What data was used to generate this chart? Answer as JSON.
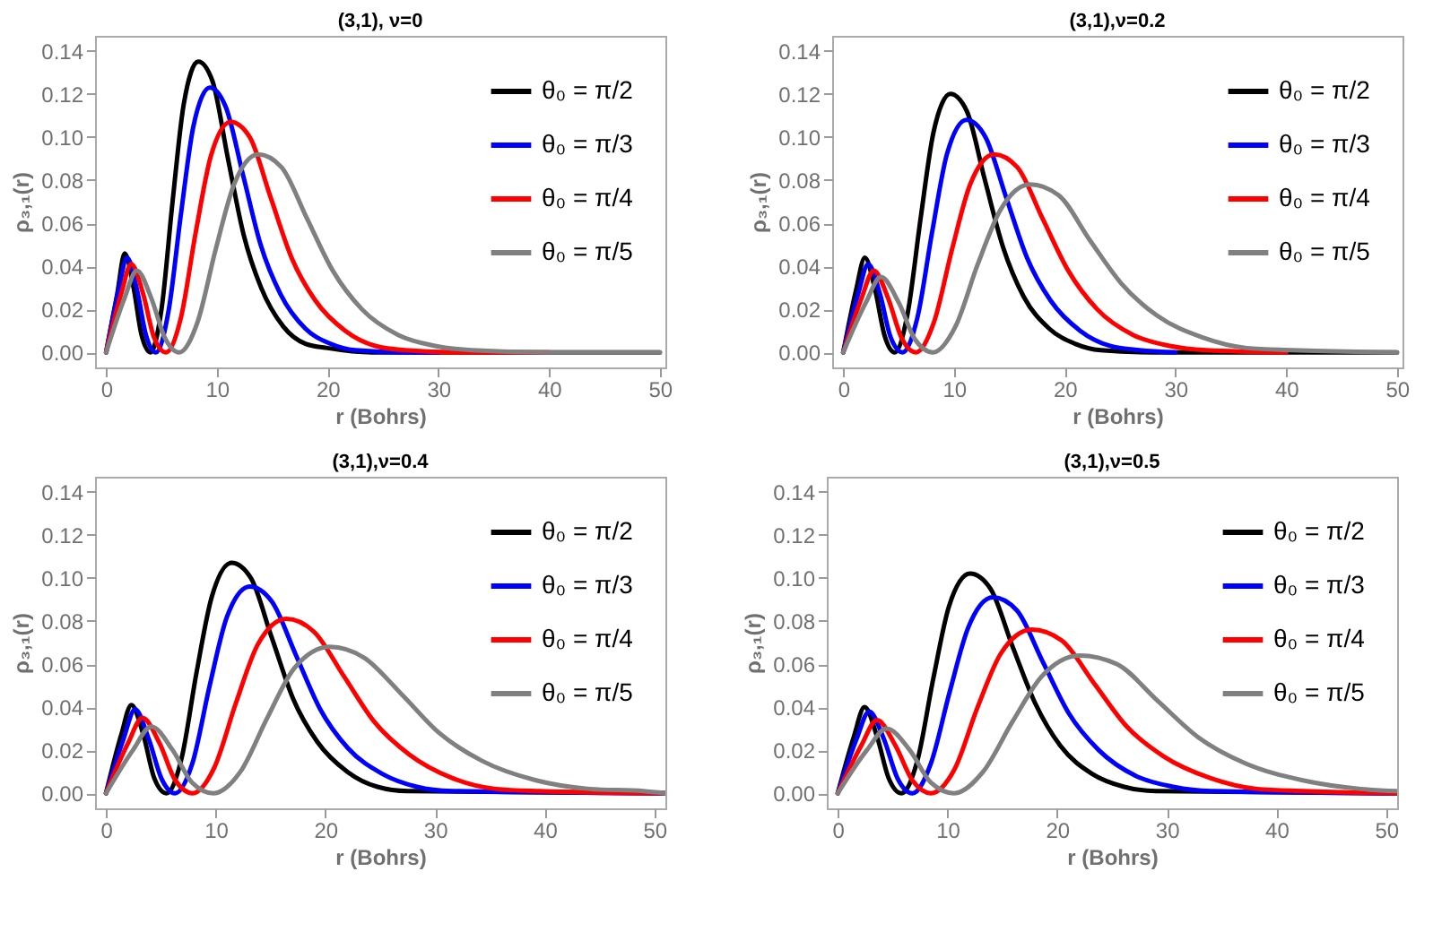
{
  "chart_data": [
    {
      "type": "line",
      "title": "(3,1), ν=0",
      "xlabel": "r (Bohrs)",
      "ylabel": "ρ₃,₁(r)",
      "xlim": [
        -1,
        50.5
      ],
      "ylim": [
        -0.007,
        0.147
      ],
      "xticks": [
        0,
        10,
        20,
        30,
        40,
        50
      ],
      "yticks": [
        {
          "value": 0,
          "label": "0.00"
        },
        {
          "value": 0.02,
          "label": "0.02"
        },
        {
          "value": 0.04,
          "label": "0.04"
        },
        {
          "value": 0.06,
          "label": "0.06"
        },
        {
          "value": 0.08,
          "label": "0.08"
        },
        {
          "value": 0.1,
          "label": "0.10"
        },
        {
          "value": 0.12,
          "label": "0.12"
        },
        {
          "value": 0.14,
          "label": "0.14"
        }
      ],
      "grid": false,
      "legend": "top right",
      "marker": "none",
      "line_style": "solid",
      "series": [
        {
          "name": "θ₀ = π/2",
          "color": "#000000",
          "x": [
            0,
            1,
            1.68,
            2.48,
            3.2,
            4,
            5,
            6,
            7,
            8.32,
            9.6,
            11,
            12.4,
            14,
            16,
            18,
            20,
            24,
            50
          ],
          "values": [
            0,
            0.027,
            0.046,
            0.03,
            0.008,
            0,
            0.02,
            0.07,
            0.115,
            0.135,
            0.126,
            0.09,
            0.055,
            0.03,
            0.012,
            0.004,
            0.002,
            0,
            0
          ]
        },
        {
          "name": "θ₀ = π/3",
          "color": "#0000ff",
          "x": [
            0,
            1.13,
            1.89,
            2.79,
            3.6,
            4.5,
            5.63,
            6.75,
            7.88,
            9.36,
            10.8,
            12.38,
            13.95,
            15.75,
            18,
            20.25,
            22.5,
            27,
            30
          ],
          "values": [
            0,
            0.029,
            0.044,
            0.029,
            0.008,
            0,
            0.019,
            0.064,
            0.105,
            0.123,
            0.114,
            0.082,
            0.05,
            0.027,
            0.011,
            0.004,
            0.001,
            0,
            0
          ]
        },
        {
          "name": "θ₀ = π/4",
          "color": "#ff0000",
          "x": [
            0,
            1.35,
            2.27,
            3.35,
            4.32,
            5.4,
            6.75,
            8.1,
            9.45,
            11.23,
            12.96,
            14.85,
            16.74,
            18.9,
            21.6,
            24.3,
            27,
            32.4,
            40
          ],
          "values": [
            0,
            0.027,
            0.041,
            0.027,
            0.007,
            0,
            0.016,
            0.056,
            0.091,
            0.107,
            0.1,
            0.072,
            0.044,
            0.024,
            0.01,
            0.003,
            0.001,
            0,
            0
          ]
        },
        {
          "name": "θ₀ = π/5",
          "color": "#808080",
          "x": [
            0,
            1.65,
            2.77,
            4.09,
            5.28,
            6.6,
            8.25,
            9.9,
            11.55,
            13.73,
            15.84,
            18.15,
            20.46,
            23.1,
            26.4,
            29.7,
            33,
            39.6,
            50
          ],
          "values": [
            0,
            0.025,
            0.038,
            0.025,
            0.007,
            0,
            0.014,
            0.048,
            0.078,
            0.092,
            0.086,
            0.062,
            0.038,
            0.02,
            0.008,
            0.003,
            0.001,
            0,
            0
          ]
        }
      ]
    },
    {
      "type": "line",
      "title": "(3,1),ν=0.2",
      "xlabel": "r (Bohrs)",
      "ylabel": "ρ₃,₁(r)",
      "xlim": [
        -1,
        50.5
      ],
      "ylim": [
        -0.007,
        0.147
      ],
      "xticks": [
        0,
        10,
        20,
        30,
        40,
        50
      ],
      "yticks": [
        {
          "value": 0,
          "label": "0.00"
        },
        {
          "value": 0.02,
          "label": "0.02"
        },
        {
          "value": 0.04,
          "label": "0.04"
        },
        {
          "value": 0.06,
          "label": "0.06"
        },
        {
          "value": 0.08,
          "label": "0.08"
        },
        {
          "value": 0.1,
          "label": "0.10"
        },
        {
          "value": 0.12,
          "label": "0.12"
        },
        {
          "value": 0.14,
          "label": "0.14"
        }
      ],
      "grid": false,
      "legend": "top right",
      "marker": "none",
      "line_style": "solid",
      "series": [
        {
          "name": "θ₀ = π/2",
          "color": "#000000",
          "x": [
            0,
            1.16,
            1.95,
            2.88,
            3.72,
            4.65,
            5.81,
            6.98,
            8.14,
            9.67,
            11.16,
            12.79,
            14.42,
            16.28,
            18.6,
            20.93,
            23.25,
            27.9,
            50
          ],
          "values": [
            0,
            0.029,
            0.044,
            0.029,
            0.008,
            0,
            0.018,
            0.062,
            0.102,
            0.12,
            0.112,
            0.08,
            0.049,
            0.026,
            0.011,
            0.004,
            0.001,
            0,
            0
          ]
        },
        {
          "name": "θ₀ = π/3",
          "color": "#0000ff",
          "x": [
            0,
            1.34,
            2.25,
            3.32,
            4.28,
            5.35,
            6.69,
            8.03,
            9.36,
            11.13,
            12.84,
            14.71,
            16.59,
            18.73,
            21.4,
            24.08,
            26.75,
            30
          ],
          "values": [
            0,
            0.027,
            0.041,
            0.027,
            0.007,
            0,
            0.016,
            0.056,
            0.092,
            0.108,
            0.1,
            0.072,
            0.044,
            0.024,
            0.01,
            0.003,
            0.001,
            0
          ]
        },
        {
          "name": "θ₀ = π/4",
          "color": "#ff0000",
          "x": [
            0,
            1.64,
            2.75,
            4.06,
            5.24,
            6.55,
            8.19,
            9.83,
            11.46,
            13.62,
            15.72,
            18.01,
            20.31,
            22.93,
            26.2,
            29.48,
            32.75,
            40
          ],
          "values": [
            0,
            0.025,
            0.038,
            0.025,
            0.007,
            0,
            0.014,
            0.048,
            0.078,
            0.092,
            0.086,
            0.062,
            0.038,
            0.02,
            0.008,
            0.003,
            0.001,
            0
          ]
        },
        {
          "name": "θ₀ = π/5",
          "color": "#808080",
          "x": [
            0,
            2.03,
            3.4,
            5.02,
            6.48,
            8.1,
            10.13,
            12.15,
            14.18,
            16.85,
            19.44,
            22.28,
            25.11,
            28.35,
            32.4,
            36.45,
            40.5,
            50
          ],
          "values": [
            0,
            0.023,
            0.035,
            0.023,
            0.006,
            0,
            0.012,
            0.041,
            0.066,
            0.078,
            0.073,
            0.052,
            0.032,
            0.017,
            0.007,
            0.002,
            0.001,
            0
          ]
        }
      ]
    },
    {
      "type": "line",
      "title": "(3,1),ν=0.4",
      "xlabel": "r (Bohrs)",
      "ylabel": "ρ₃,₁(r)",
      "xlim": [
        -1,
        51
      ],
      "ylim": [
        -0.007,
        0.147
      ],
      "xticks": [
        0,
        10,
        20,
        30,
        40,
        50
      ],
      "yticks": [
        {
          "value": 0,
          "label": "0.00"
        },
        {
          "value": 0.02,
          "label": "0.02"
        },
        {
          "value": 0.04,
          "label": "0.04"
        },
        {
          "value": 0.06,
          "label": "0.06"
        },
        {
          "value": 0.08,
          "label": "0.08"
        },
        {
          "value": 0.1,
          "label": "0.10"
        },
        {
          "value": 0.12,
          "label": "0.12"
        },
        {
          "value": 0.14,
          "label": "0.14"
        }
      ],
      "grid": false,
      "legend": "top right",
      "marker": "none",
      "line_style": "solid",
      "series": [
        {
          "name": "θ₀ = π/2",
          "color": "#000000",
          "x": [
            0,
            1.38,
            2.31,
            3.41,
            4.4,
            5.5,
            6.88,
            8.25,
            9.63,
            11.44,
            13.2,
            15.13,
            17.05,
            19.25,
            22,
            24.75,
            27.5,
            51
          ],
          "values": [
            0,
            0.027,
            0.041,
            0.027,
            0.007,
            0,
            0.016,
            0.056,
            0.091,
            0.107,
            0.1,
            0.072,
            0.044,
            0.024,
            0.01,
            0.003,
            0.001,
            0
          ]
        },
        {
          "name": "θ₀ = π/3",
          "color": "#0000ff",
          "x": [
            0,
            1.58,
            2.65,
            3.91,
            5.04,
            6.3,
            7.88,
            9.45,
            11.03,
            13.1,
            15.12,
            17.33,
            19.53,
            22.05,
            25.2,
            28.35,
            31.5,
            51
          ],
          "values": [
            0,
            0.025,
            0.039,
            0.025,
            0.007,
            0,
            0.014,
            0.05,
            0.082,
            0.096,
            0.089,
            0.064,
            0.039,
            0.021,
            0.009,
            0.003,
            0.001,
            0
          ]
        },
        {
          "name": "θ₀ = π/4",
          "color": "#ff0000",
          "x": [
            0,
            1.98,
            3.32,
            4.9,
            6.32,
            7.9,
            9.88,
            11.85,
            13.83,
            16.43,
            18.96,
            21.73,
            24.49,
            27.65,
            31.6,
            35.55,
            39.5,
            51
          ],
          "values": [
            0,
            0.023,
            0.035,
            0.023,
            0.006,
            0,
            0.012,
            0.042,
            0.069,
            0.081,
            0.075,
            0.054,
            0.033,
            0.018,
            0.007,
            0.002,
            0.001,
            0
          ]
        },
        {
          "name": "θ₀ = π/5",
          "color": "#808080",
          "x": [
            0,
            2.45,
            4.12,
            6.08,
            7.84,
            9.8,
            12.25,
            14.7,
            17.15,
            20.38,
            23.52,
            26.95,
            30.38,
            34.3,
            39.2,
            44.1,
            49,
            51
          ],
          "values": [
            0,
            0.02,
            0.031,
            0.02,
            0.005,
            0,
            0.01,
            0.035,
            0.058,
            0.068,
            0.063,
            0.046,
            0.028,
            0.015,
            0.006,
            0.002,
            0.001,
            0
          ]
        }
      ]
    },
    {
      "type": "line",
      "title": "(3,1),ν=0.5",
      "xlabel": "r (Bohrs)",
      "ylabel": "ρ₃,₁(r)",
      "xlim": [
        -1,
        51
      ],
      "ylim": [
        -0.007,
        0.147
      ],
      "xticks": [
        0,
        10,
        20,
        30,
        40,
        50
      ],
      "yticks": [
        {
          "value": 0,
          "label": "0.00"
        },
        {
          "value": 0.02,
          "label": "0.02"
        },
        {
          "value": 0.04,
          "label": "0.04"
        },
        {
          "value": 0.06,
          "label": "0.06"
        },
        {
          "value": 0.08,
          "label": "0.08"
        },
        {
          "value": 0.1,
          "label": "0.10"
        },
        {
          "value": 0.12,
          "label": "0.12"
        },
        {
          "value": 0.14,
          "label": "0.14"
        }
      ],
      "grid": false,
      "legend": "top right",
      "marker": "none",
      "line_style": "solid",
      "series": [
        {
          "name": "θ₀ = π/2",
          "color": "#000000",
          "x": [
            0,
            1.45,
            2.44,
            3.6,
            4.64,
            5.8,
            7.25,
            8.7,
            10.15,
            12.06,
            13.92,
            15.95,
            17.98,
            20.3,
            23.2,
            26.1,
            29,
            51
          ],
          "values": [
            0,
            0.026,
            0.04,
            0.026,
            0.007,
            0,
            0.015,
            0.053,
            0.087,
            0.102,
            0.095,
            0.068,
            0.042,
            0.022,
            0.009,
            0.003,
            0.001,
            0
          ]
        },
        {
          "name": "θ₀ = π/3",
          "color": "#0000ff",
          "x": [
            0,
            1.7,
            2.86,
            4.22,
            5.44,
            6.8,
            8.5,
            10.2,
            11.9,
            14.14,
            16.32,
            18.7,
            21.08,
            23.8,
            27.2,
            30.6,
            34,
            51
          ],
          "values": [
            0,
            0.025,
            0.038,
            0.025,
            0.007,
            0,
            0.014,
            0.047,
            0.077,
            0.091,
            0.085,
            0.061,
            0.037,
            0.02,
            0.008,
            0.003,
            0.001,
            0
          ]
        },
        {
          "name": "θ₀ = π/4",
          "color": "#ff0000",
          "x": [
            0,
            2.13,
            3.57,
            5.27,
            6.8,
            8.5,
            10.63,
            12.75,
            14.88,
            17.68,
            20.4,
            23.38,
            26.35,
            29.75,
            34,
            38.25,
            42.5,
            51
          ],
          "values": [
            0,
            0.022,
            0.034,
            0.022,
            0.006,
            0,
            0.011,
            0.04,
            0.065,
            0.076,
            0.071,
            0.051,
            0.031,
            0.017,
            0.007,
            0.002,
            0.001,
            0
          ]
        },
        {
          "name": "θ₀ = π/5",
          "color": "#808080",
          "x": [
            0,
            2.65,
            4.45,
            6.57,
            8.48,
            10.6,
            13.25,
            15.9,
            18.55,
            22.05,
            25.44,
            29.15,
            32.86,
            37.1,
            42.4,
            47.7,
            51
          ],
          "values": [
            0,
            0.02,
            0.03,
            0.02,
            0.005,
            0,
            0.01,
            0.033,
            0.054,
            0.064,
            0.06,
            0.043,
            0.026,
            0.014,
            0.006,
            0.002,
            0.001
          ]
        }
      ]
    }
  ]
}
